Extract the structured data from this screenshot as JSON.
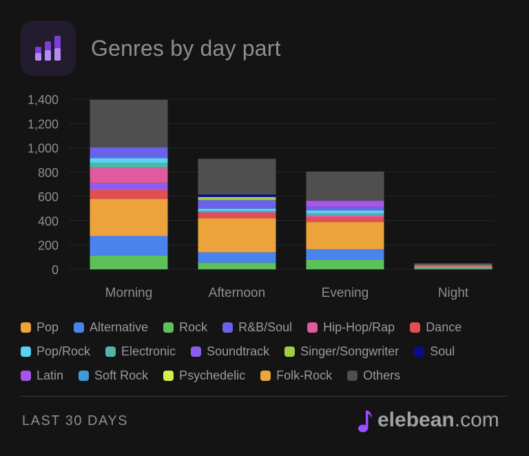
{
  "header": {
    "title": "Genres by day part",
    "icon": "bar-chart-app-icon"
  },
  "footer": {
    "period": "LAST 30 DAYS",
    "brand_name": "elebean",
    "brand_suffix": ".com",
    "brand_icon": "music-note-icon"
  },
  "colors": {
    "background": "#141414",
    "others": "#4f4f4f",
    "accent": "#9b4dff"
  },
  "chart_data": {
    "type": "bar",
    "stacked": true,
    "categories": [
      "Morning",
      "Afternoon",
      "Evening",
      "Night"
    ],
    "ylim": [
      0,
      1400
    ],
    "yticks": [
      0,
      200,
      400,
      600,
      800,
      1000,
      1200,
      1400
    ],
    "ytick_labels": [
      "0",
      "200",
      "400",
      "600",
      "800",
      "1,000",
      "1,200",
      "1,400"
    ],
    "grid": true,
    "legend_position": "bottom",
    "series": [
      {
        "name": "Rock",
        "color": "#5ec05a",
        "values": [
          115,
          55,
          80,
          8
        ]
      },
      {
        "name": "Alternative",
        "color": "#4a82ee",
        "values": [
          160,
          85,
          85,
          5
        ]
      },
      {
        "name": "Pop",
        "color": "#eda33b",
        "values": [
          305,
          280,
          225,
          10
        ]
      },
      {
        "name": "Dance",
        "color": "#e05050",
        "values": [
          70,
          45,
          30,
          3
        ]
      },
      {
        "name": "Hip-Hop/Rap",
        "color": "#e05a9e",
        "values": [
          10,
          5,
          10,
          2
        ]
      },
      {
        "name": "Soundtrack",
        "color": "#8a5cf0",
        "values": [
          50,
          0,
          0,
          2
        ]
      },
      {
        "name": "Hip-Hop/Rap",
        "color": "#e05a9e",
        "values": [
          125,
          0,
          15,
          0
        ]
      },
      {
        "name": "Electronic",
        "color": "#4fb6a8",
        "values": [
          40,
          10,
          15,
          2
        ]
      },
      {
        "name": "Pop/Rock",
        "color": "#5ad2f0",
        "values": [
          40,
          20,
          25,
          3
        ]
      },
      {
        "name": "R&B/Soul",
        "color": "#6a62e8",
        "values": [
          90,
          70,
          30,
          3
        ]
      },
      {
        "name": "Singer/Songwriter",
        "color": "#9ed043",
        "values": [
          0,
          25,
          0,
          2
        ]
      },
      {
        "name": "Soul",
        "color": "#0c0c8a",
        "values": [
          0,
          20,
          0,
          0
        ]
      },
      {
        "name": "Latin",
        "color": "#a656e8",
        "values": [
          0,
          0,
          50,
          0
        ]
      },
      {
        "name": "Others",
        "color": "#4f4f4f",
        "values": [
          390,
          295,
          240,
          10
        ]
      }
    ],
    "legend": [
      {
        "label": "Pop",
        "color": "#eda33b"
      },
      {
        "label": "Alternative",
        "color": "#4a82ee"
      },
      {
        "label": "Rock",
        "color": "#5ec05a"
      },
      {
        "label": "R&B/Soul",
        "color": "#6a62e8"
      },
      {
        "label": "Hip-Hop/Rap",
        "color": "#e05a9e"
      },
      {
        "label": "Dance",
        "color": "#e05050"
      },
      {
        "label": "Pop/Rock",
        "color": "#5ad2f0"
      },
      {
        "label": "Electronic",
        "color": "#4fb6a8"
      },
      {
        "label": "Soundtrack",
        "color": "#8a5cf0"
      },
      {
        "label": "Singer/Songwriter",
        "color": "#9ed043"
      },
      {
        "label": "Soul",
        "color": "#0c0c8a"
      },
      {
        "label": "Latin",
        "color": "#a656e8"
      },
      {
        "label": "Soft Rock",
        "color": "#3f9ad8"
      },
      {
        "label": "Psychedelic",
        "color": "#d2f04a"
      },
      {
        "label": "Folk-Rock",
        "color": "#e8a83a"
      },
      {
        "label": "Others",
        "color": "#4f4f4f"
      }
    ]
  }
}
